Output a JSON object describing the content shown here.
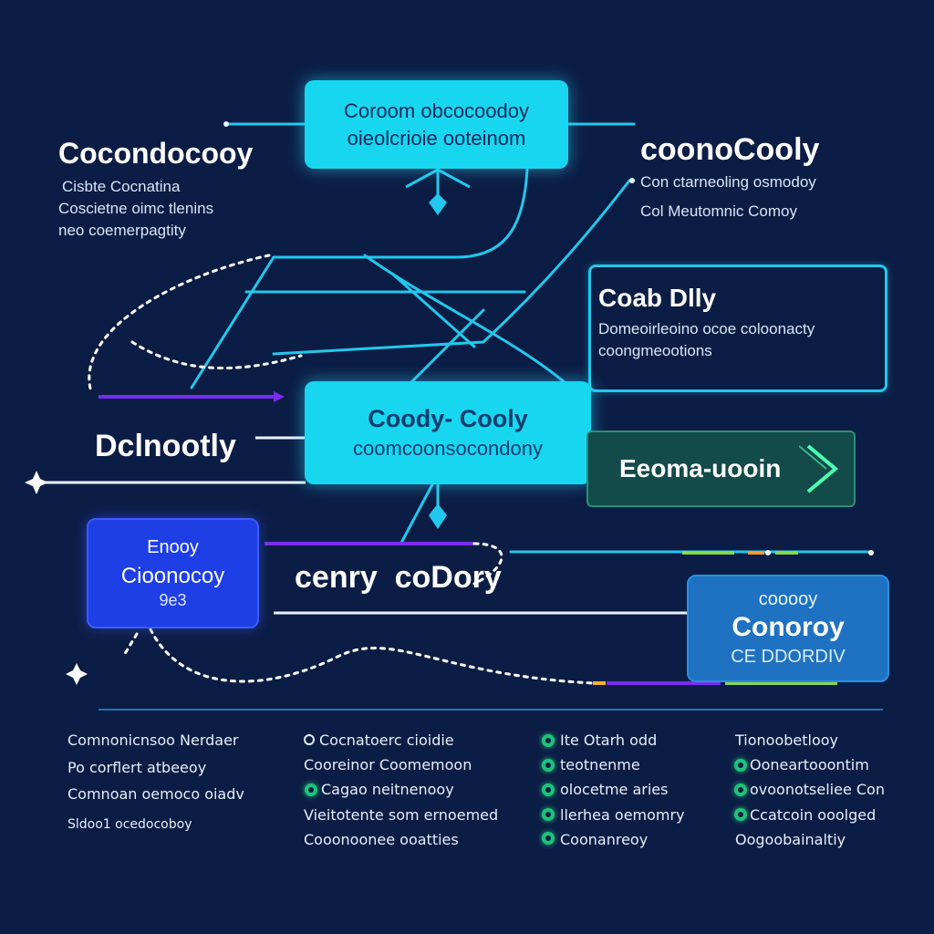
{
  "nodes": {
    "top": {
      "line1": "Coroom obcocoodoy",
      "line2": "oieolcrioie ooteinom"
    },
    "center": {
      "line1": "Coody- Cooly",
      "line2": "coomcoonsocondony"
    },
    "left_blue": {
      "line1": "Enooy",
      "line2": "Cioonocoy",
      "line3": "9e3"
    },
    "right_box": {
      "title": "Coab Dlly",
      "line1": "Domeoirleoino ocoe coloonacty",
      "line2": "coongmeootions"
    },
    "right_green": {
      "label": "Eeoma-uooin"
    },
    "right_blue": {
      "line1": "cooooy",
      "line2": "Conoroy",
      "line3": "CE DDORDIV"
    }
  },
  "labels": {
    "top_left": {
      "title": "Cocondocooy",
      "lines": [
        "Cisbte Cocnatina",
        "Coscietne oimc tlenins",
        "neo coemerpagtity"
      ]
    },
    "top_right": {
      "title": "coonoCooly",
      "lines": [
        "Con ctarneoling osmodoy",
        "Col Meutomnic Comoy"
      ]
    },
    "mid_left": {
      "title": "Dclnootly"
    },
    "center_caption": {
      "text": "cenry  coDory"
    }
  },
  "legend": {
    "col1": [
      "Comnonicnsoo Nerdaer",
      "Po corflert atbeeoy",
      "Comnoan oemoco oiadv",
      "Sldoo1 ocedocoboy"
    ],
    "col2": [
      {
        "marker": "ring",
        "text": "Cocnatoerc cioidie"
      },
      {
        "marker": "none",
        "text": "Cooreinor Coomemoon"
      },
      {
        "marker": "dot",
        "text": "Cagao neitnenooy"
      },
      {
        "marker": "none",
        "text": "Vieitotente som ernoemed"
      },
      {
        "marker": "none",
        "text": "Cooonoonee ooatties"
      }
    ],
    "col3": [
      {
        "marker": "dot",
        "text": "Ite Otarh odd"
      },
      {
        "marker": "dot",
        "text": "teotnenme"
      },
      {
        "marker": "dot",
        "text": "olocetme aries"
      },
      {
        "marker": "dot",
        "text": "llerhea oemomry"
      },
      {
        "marker": "dot",
        "text": "Coonanreoy"
      }
    ],
    "col4": [
      {
        "marker": "none",
        "text": "Tionoobetlooy"
      },
      {
        "marker": "dot",
        "text": "Ooneartooontim"
      },
      {
        "marker": "dot",
        "text": "ovoonotseliee Con"
      },
      {
        "marker": "dot",
        "text": "Ccatcoin ooolged"
      },
      {
        "marker": "none",
        "text": "Oogoobainaltiy"
      }
    ]
  },
  "colors": {
    "background": "#0c1d45",
    "cyan": "#19d6f0",
    "blue": "#1f3ee8",
    "purple": "#7b2cf0",
    "green": "#1fc27a"
  }
}
